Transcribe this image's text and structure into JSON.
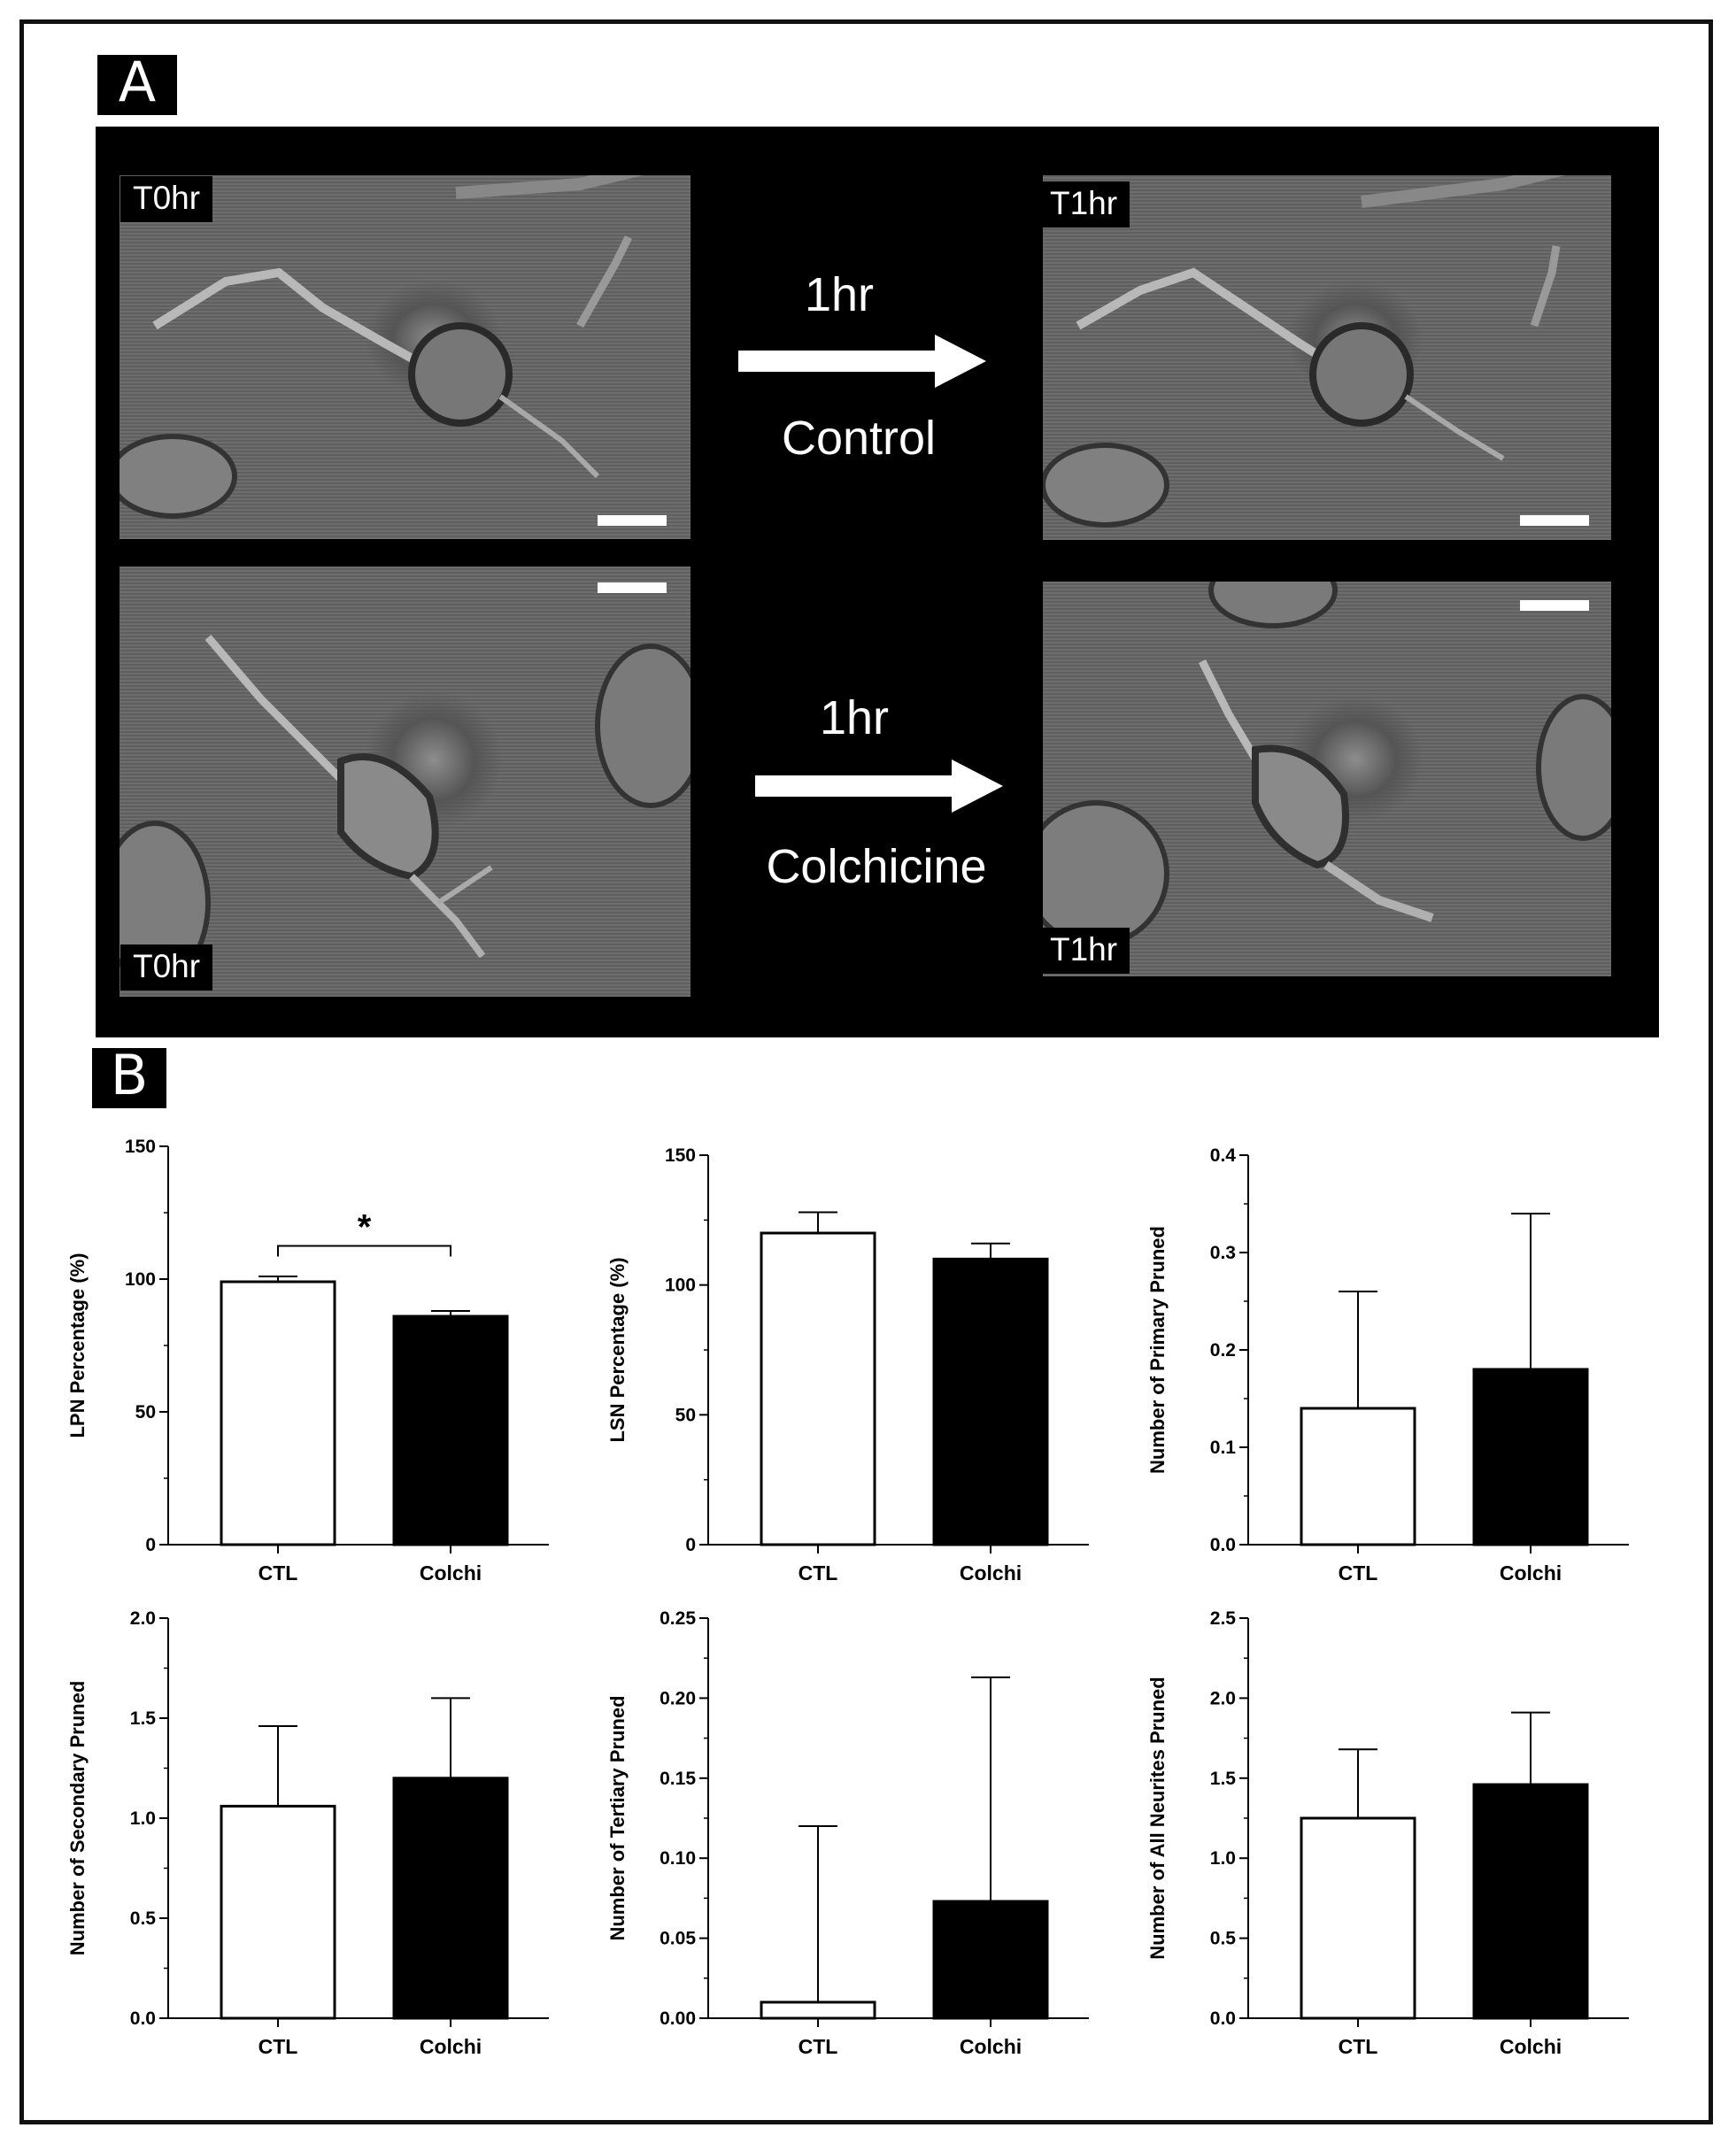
{
  "panels": {
    "a_label": "A",
    "b_label": "B"
  },
  "microscopy": {
    "control_t0_label": "T0hr",
    "control_t1_label": "T1hr",
    "colchicine_t0_label": "T0hr",
    "colchicine_t1_label": "T1hr",
    "control_arrow_time": "1hr",
    "control_arrow_condition": "Control",
    "colchicine_arrow_time": "1hr",
    "colchicine_arrow_condition": "Colchicine"
  },
  "colors": {
    "ctl_bar": "#ffffff",
    "colchi_bar": "#000000",
    "axis": "#000000"
  },
  "chart_data": [
    {
      "type": "bar",
      "categories": [
        "CTL",
        "Colchi"
      ],
      "values": [
        99,
        86
      ],
      "errors": [
        2,
        2
      ],
      "ylabel": "LPN Percentage (%)",
      "ylim": [
        0,
        150
      ],
      "yticks": [
        "0",
        "50",
        "100",
        "150"
      ],
      "significance": "*"
    },
    {
      "type": "bar",
      "categories": [
        "CTL",
        "Colchi"
      ],
      "values": [
        120,
        110
      ],
      "errors": [
        8,
        6
      ],
      "ylabel": "LSN Percentage (%)",
      "ylim": [
        0,
        150
      ],
      "yticks": [
        "0",
        "50",
        "100",
        "150"
      ]
    },
    {
      "type": "bar",
      "categories": [
        "CTL",
        "Colchi"
      ],
      "values": [
        0.14,
        0.18
      ],
      "errors": [
        0.12,
        0.16
      ],
      "ylabel": "Number of Primary Pruned",
      "ylim": [
        0,
        0.4
      ],
      "yticks": [
        "0.0",
        "0.1",
        "0.2",
        "0.3",
        "0.4"
      ]
    },
    {
      "type": "bar",
      "categories": [
        "CTL",
        "Colchi"
      ],
      "values": [
        1.06,
        1.2
      ],
      "errors": [
        0.4,
        0.4
      ],
      "ylabel": "Number of Secondary Pruned",
      "ylim": [
        0,
        2.0
      ],
      "yticks": [
        "0.0",
        "0.5",
        "1.0",
        "1.5",
        "2.0"
      ]
    },
    {
      "type": "bar",
      "categories": [
        "CTL",
        "Colchi"
      ],
      "values": [
        0.01,
        0.073
      ],
      "errors": [
        0.11,
        0.14
      ],
      "ylabel": "Number of Tertiary Pruned",
      "ylim": [
        0,
        0.25
      ],
      "yticks": [
        "0.00",
        "0.05",
        "0.10",
        "0.15",
        "0.20",
        "0.25"
      ]
    },
    {
      "type": "bar",
      "categories": [
        "CTL",
        "Colchi"
      ],
      "values": [
        1.25,
        1.46
      ],
      "errors": [
        0.43,
        0.45
      ],
      "ylabel": "Number of All Neurites Pruned",
      "ylim": [
        0,
        2.5
      ],
      "yticks": [
        "0.0",
        "0.5",
        "1.0",
        "1.5",
        "2.0",
        "2.5"
      ]
    }
  ]
}
